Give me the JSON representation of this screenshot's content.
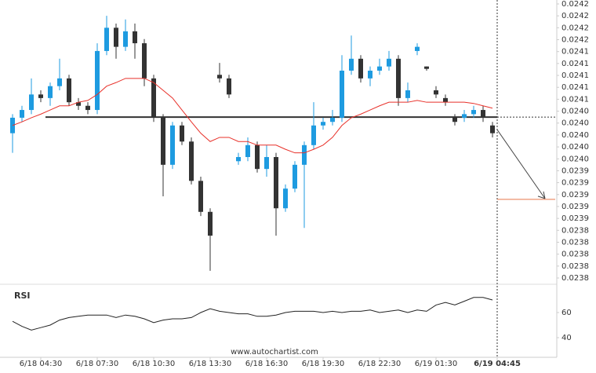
{
  "chart_data": {
    "type": "candlestick",
    "x": [
      "6/18 03:00",
      "6/18 03:30",
      "6/18 04:00",
      "6/18 04:30",
      "6/18 05:00",
      "6/18 05:30",
      "6/18 06:00",
      "6/18 06:30",
      "6/18 07:00",
      "6/18 07:30",
      "6/18 08:00",
      "6/18 08:30",
      "6/18 09:00",
      "6/18 09:30",
      "6/18 10:00",
      "6/18 10:30",
      "6/18 11:00",
      "6/18 11:30",
      "6/18 12:00",
      "6/18 12:30",
      "6/18 13:00",
      "6/18 13:30",
      "6/18 14:00",
      "6/18 14:30",
      "6/18 15:00",
      "6/18 15:30",
      "6/18 16:00",
      "6/18 16:30",
      "6/18 17:00",
      "6/18 17:30",
      "6/18 18:00",
      "6/18 18:30",
      "6/18 19:00",
      "6/18 19:30",
      "6/18 20:00",
      "6/18 20:30",
      "6/18 21:00",
      "6/18 21:30",
      "6/18 22:00",
      "6/18 22:30",
      "6/18 23:00",
      "6/18 23:30",
      "6/19 00:00",
      "6/19 00:30",
      "6/19 01:00",
      "6/19 01:30",
      "6/19 02:00",
      "6/19 02:30",
      "6/19 03:00",
      "6/19 03:30",
      "6/19 04:00",
      "6/19 04:30"
    ],
    "open": [
      0.024003,
      0.024029,
      0.024042,
      0.024068,
      0.024062,
      0.024082,
      0.024095,
      0.024055,
      0.024049,
      0.024042,
      0.024141,
      0.02418,
      0.024148,
      0.024174,
      0.024154,
      0.024095,
      0.024029,
      0.02395,
      0.024016,
      0.023989,
      0.023923,
      0.023871,
      0.024101,
      0.024095,
      0.023956,
      0.023963,
      0.023983,
      0.023943,
      0.023963,
      0.023877,
      0.02391,
      0.02395,
      0.023983,
      0.024016,
      0.024022,
      0.024029,
      0.024108,
      0.024128,
      0.024095,
      0.024108,
      0.024115,
      0.024128,
      0.024062,
      0.024141,
      0.024115,
      0.024075,
      0.024062,
      0.024029,
      0.024029,
      0.024035,
      0.024042,
      0.024016
    ],
    "high": [
      0.024035,
      0.024049,
      0.024095,
      0.024075,
      0.024088,
      0.024128,
      0.024101,
      0.024062,
      0.024055,
      0.024154,
      0.0242,
      0.024187,
      0.024194,
      0.024187,
      0.024161,
      0.024101,
      0.024035,
      0.024022,
      0.024022,
      0.023996,
      0.02393,
      0.023877,
      0.024121,
      0.024101,
      0.02397,
      0.023996,
      0.023989,
      0.023983,
      0.02397,
      0.023917,
      0.023956,
      0.023989,
      0.024055,
      0.024029,
      0.024042,
      0.024134,
      0.024167,
      0.024134,
      0.024115,
      0.024128,
      0.024141,
      0.024134,
      0.024088,
      0.024154,
      0.024115,
      0.024082,
      0.024068,
      0.024035,
      0.024042,
      0.024049,
      0.024049,
      0.024022
    ],
    "low": [
      0.02397,
      0.024022,
      0.024035,
      0.024055,
      0.024049,
      0.024075,
      0.024049,
      0.024042,
      0.024035,
      0.024035,
      0.024134,
      0.024128,
      0.024141,
      0.024128,
      0.024082,
      0.024022,
      0.023897,
      0.023943,
      0.023983,
      0.023917,
      0.023864,
      0.023772,
      0.024088,
      0.024062,
      0.02395,
      0.023956,
      0.023937,
      0.02393,
      0.023831,
      0.023871,
      0.023904,
      0.023844,
      0.023976,
      0.024009,
      0.024016,
      0.024022,
      0.024101,
      0.024088,
      0.024082,
      0.024101,
      0.024108,
      0.024049,
      0.024055,
      0.024134,
      0.024108,
      0.024062,
      0.024049,
      0.024016,
      0.024022,
      0.024029,
      0.024022,
      0.023996
    ],
    "close": [
      0.024029,
      0.024042,
      0.024068,
      0.024062,
      0.024082,
      0.024095,
      0.024055,
      0.024049,
      0.024042,
      0.024141,
      0.02418,
      0.024148,
      0.024174,
      0.024154,
      0.024095,
      0.024029,
      0.02395,
      0.024016,
      0.023989,
      0.023923,
      0.023871,
      0.023831,
      0.024095,
      0.024068,
      0.023963,
      0.023983,
      0.023943,
      0.023963,
      0.023877,
      0.02391,
      0.02395,
      0.023983,
      0.024016,
      0.024022,
      0.024029,
      0.024108,
      0.024128,
      0.024095,
      0.024108,
      0.024115,
      0.024128,
      0.024062,
      0.024075,
      0.024148,
      0.024111,
      0.024068,
      0.024055,
      0.024022,
      0.024035,
      0.024042,
      0.024029,
      0.024003
    ],
    "up_color": "#1e9be0",
    "down_color": "#333333",
    "moving_average": {
      "color": "#e8312a",
      "values": [
        0.024016,
        0.024022,
        0.024029,
        0.024035,
        0.024042,
        0.024049,
        0.024049,
        0.024055,
        0.024058,
        0.024068,
        0.024082,
        0.024088,
        0.024095,
        0.024095,
        0.024095,
        0.024088,
        0.024075,
        0.024062,
        0.024042,
        0.024022,
        0.024003,
        0.023989,
        0.023996,
        0.023996,
        0.023989,
        0.023989,
        0.023983,
        0.023983,
        0.023983,
        0.023976,
        0.02397,
        0.02397,
        0.023976,
        0.023983,
        0.023996,
        0.024016,
        0.024029,
        0.024035,
        0.024042,
        0.024049,
        0.024055,
        0.024055,
        0.024055,
        0.024058,
        0.024055,
        0.024055,
        0.024055,
        0.024055,
        0.024055,
        0.024053,
        0.024049,
        0.024045
      ]
    },
    "support_level": 0.02403,
    "target_level": 0.023892,
    "ylim": [
      0.02376,
      0.02422
    ],
    "yticks": [
      {
        "value": 0.02422,
        "label": "0.0242"
      },
      {
        "value": 0.0242,
        "label": "0.0242"
      },
      {
        "value": 0.02418,
        "label": "0.0242"
      },
      {
        "value": 0.02416,
        "label": "0.0242"
      },
      {
        "value": 0.02414,
        "label": "0.0241"
      },
      {
        "value": 0.02412,
        "label": "0.0241"
      },
      {
        "value": 0.0241,
        "label": "0.0241"
      },
      {
        "value": 0.02408,
        "label": "0.0241"
      },
      {
        "value": 0.02406,
        "label": "0.0241"
      },
      {
        "value": 0.02404,
        "label": "0.0240"
      },
      {
        "value": 0.02402,
        "label": "0.0240"
      },
      {
        "value": 0.024,
        "label": "0.0240"
      },
      {
        "value": 0.02398,
        "label": "0.0240"
      },
      {
        "value": 0.02396,
        "label": "0.0240"
      },
      {
        "value": 0.02394,
        "label": "0.0239"
      },
      {
        "value": 0.02392,
        "label": "0.0239"
      },
      {
        "value": 0.0239,
        "label": "0.0239"
      },
      {
        "value": 0.02388,
        "label": "0.0239"
      },
      {
        "value": 0.02386,
        "label": "0.0239"
      },
      {
        "value": 0.02384,
        "label": "0.0238"
      },
      {
        "value": 0.02382,
        "label": "0.0238"
      },
      {
        "value": 0.0238,
        "label": "0.0238"
      },
      {
        "value": 0.02378,
        "label": "0.0238"
      },
      {
        "value": 0.02376,
        "label": "0.0238"
      }
    ],
    "xticks": [
      "6/18 04:30",
      "6/18 07:30",
      "6/18 10:30",
      "6/18 13:30",
      "6/18 16:30",
      "6/18 19:30",
      "6/18 22:30",
      "6/19 01:30",
      "6/19 04:45"
    ],
    "rsi": {
      "title": "RSI",
      "values": [
        53,
        49,
        46,
        48,
        50,
        54,
        56,
        57,
        58,
        58,
        58,
        56,
        58,
        57,
        55,
        52,
        54,
        55,
        55,
        56,
        60,
        63,
        61,
        60,
        59,
        59,
        57,
        57,
        58,
        60,
        61,
        61,
        61,
        60,
        61,
        60,
        61,
        61,
        62,
        60,
        61,
        62,
        60,
        62,
        61,
        66,
        68,
        66,
        69,
        72,
        72,
        70
      ],
      "ylim": [
        30,
        80
      ],
      "yticks": [
        40,
        60
      ]
    },
    "source": "www.autochartist.com"
  }
}
